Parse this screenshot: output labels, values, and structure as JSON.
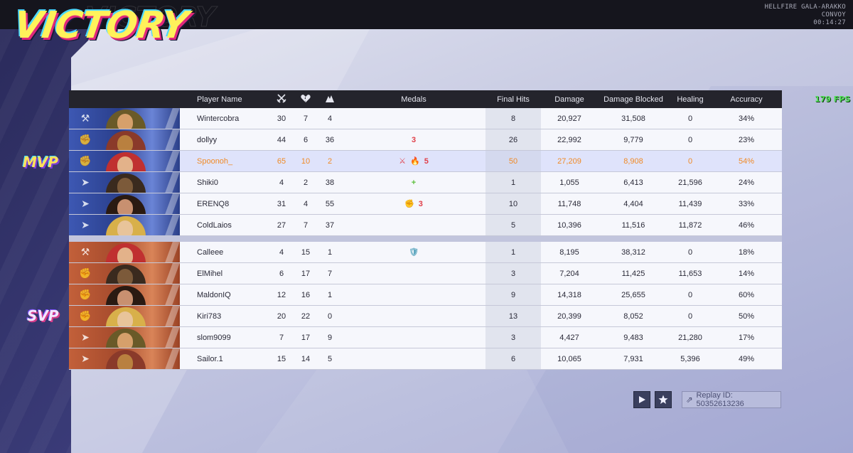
{
  "header": {
    "title": "VICTORY",
    "map_line1": "HELLFIRE GALA-ARAKKO",
    "map_line2": "CONVOY",
    "match_time": "00:14:27",
    "fps": "179 FPS"
  },
  "columns": {
    "player_name": "Player Name",
    "kills_icon": "swords-icon",
    "deaths_icon": "broken-heart-icon",
    "assists_icon": "assist-icon",
    "medals": "Medals",
    "final_hits": "Final Hits",
    "damage": "Damage",
    "damage_blocked": "Damage Blocked",
    "healing": "Healing",
    "accuracy": "Accuracy"
  },
  "badges": {
    "mvp": "MVP",
    "svp": "SVP"
  },
  "team_colors": {
    "ally": "#3d58b3",
    "enemy": "#c2603a",
    "mvp_text": "#f08a26"
  },
  "ally": [
    {
      "name": "Wintercobra",
      "k": "30",
      "d": "7",
      "a": "4",
      "medals": [],
      "final_hits": "8",
      "damage": "20,927",
      "blocked": "31,508",
      "healing": "0",
      "accuracy": "34%",
      "role": "vanguard-icon"
    },
    {
      "name": "dollyy",
      "k": "44",
      "d": "6",
      "a": "36",
      "medals": [
        "3"
      ],
      "final_hits": "26",
      "damage": "22,992",
      "blocked": "9,779",
      "healing": "0",
      "accuracy": "23%",
      "role": "duelist-icon"
    },
    {
      "name": "Spoonoh_",
      "k": "65",
      "d": "10",
      "a": "2",
      "medals": [
        "⚔",
        "🔥",
        "5"
      ],
      "final_hits": "50",
      "damage": "27,209",
      "blocked": "8,908",
      "healing": "0",
      "accuracy": "54%",
      "role": "duelist-icon",
      "mvp": true
    },
    {
      "name": "Shiki0",
      "k": "4",
      "d": "2",
      "a": "38",
      "medals": [
        "+"
      ],
      "final_hits": "1",
      "damage": "1,055",
      "blocked": "6,413",
      "healing": "21,596",
      "accuracy": "24%",
      "role": "strategist-icon"
    },
    {
      "name": "ERENQ8",
      "k": "31",
      "d": "4",
      "a": "55",
      "medals": [
        "✊",
        "3"
      ],
      "final_hits": "10",
      "damage": "11,748",
      "blocked": "4,404",
      "healing": "11,439",
      "accuracy": "33%",
      "role": "strategist-icon"
    },
    {
      "name": "ColdLaios",
      "k": "27",
      "d": "7",
      "a": "37",
      "medals": [],
      "final_hits": "5",
      "damage": "10,396",
      "blocked": "11,516",
      "healing": "11,872",
      "accuracy": "46%",
      "role": "strategist-icon"
    }
  ],
  "enemy": [
    {
      "name": "Calleee",
      "k": "4",
      "d": "15",
      "a": "1",
      "medals": [
        "🛡"
      ],
      "final_hits": "1",
      "damage": "8,195",
      "blocked": "38,312",
      "healing": "0",
      "accuracy": "18%",
      "role": "vanguard-icon"
    },
    {
      "name": "ElMihel",
      "k": "6",
      "d": "17",
      "a": "7",
      "medals": [],
      "final_hits": "3",
      "damage": "7,204",
      "blocked": "11,425",
      "healing": "11,653",
      "accuracy": "14%",
      "role": "duelist-icon"
    },
    {
      "name": "MaldonIQ",
      "k": "12",
      "d": "16",
      "a": "1",
      "medals": [],
      "final_hits": "9",
      "damage": "14,318",
      "blocked": "25,655",
      "healing": "0",
      "accuracy": "60%",
      "role": "duelist-icon"
    },
    {
      "name": "Kiri783",
      "k": "20",
      "d": "22",
      "a": "0",
      "medals": [],
      "final_hits": "13",
      "damage": "20,399",
      "blocked": "8,052",
      "healing": "0",
      "accuracy": "50%",
      "role": "duelist-icon",
      "svp": true
    },
    {
      "name": "slom9099",
      "k": "7",
      "d": "17",
      "a": "9",
      "medals": [],
      "final_hits": "3",
      "damage": "4,427",
      "blocked": "9,483",
      "healing": "21,280",
      "accuracy": "17%",
      "role": "strategist-icon"
    },
    {
      "name": "Sailor.1",
      "k": "15",
      "d": "14",
      "a": "5",
      "medals": [],
      "final_hits": "6",
      "damage": "10,065",
      "blocked": "7,931",
      "healing": "5,396",
      "accuracy": "49%",
      "role": "strategist-icon"
    }
  ],
  "footer": {
    "play_icon": "play-icon",
    "favorite_icon": "star-icon",
    "replay_label": "Replay ID: 50352613236"
  }
}
